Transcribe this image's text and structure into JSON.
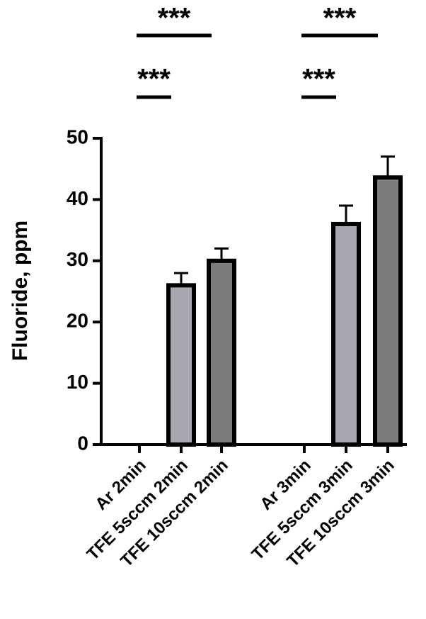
{
  "chart_data": {
    "type": "bar",
    "ylabel": "Fluoride, ppm",
    "categories": [
      "Ar 2min",
      "TFE 5sccm 2min",
      "TFE 10sccm 2min",
      "Ar 3min",
      "TFE 5sccm 3min",
      "TFE 10sccm 3min"
    ],
    "values": [
      0,
      26,
      30,
      0,
      36,
      43.6
    ],
    "errors": [
      null,
      2,
      2,
      null,
      3,
      3.4
    ],
    "colors": [
      "#a9a8b0",
      "#a9a8b0",
      "#7c7c7c",
      "#a9a8b0",
      "#a9a8b0",
      "#7c7c7c"
    ],
    "ylim": [
      0,
      50
    ],
    "yticks": [
      0,
      10,
      20,
      30,
      40,
      50
    ],
    "annotations": [
      {
        "text": "***",
        "between": [
          "Ar 2min",
          "TFE 10sccm 2min"
        ]
      },
      {
        "text": "***",
        "between": [
          "Ar 2min",
          "TFE 5sccm 2min"
        ]
      },
      {
        "text": "***",
        "between": [
          "Ar 3min",
          "TFE 10sccm 3min"
        ]
      },
      {
        "text": "***",
        "between": [
          "Ar 3min",
          "TFE 5sccm 3min"
        ]
      }
    ]
  }
}
